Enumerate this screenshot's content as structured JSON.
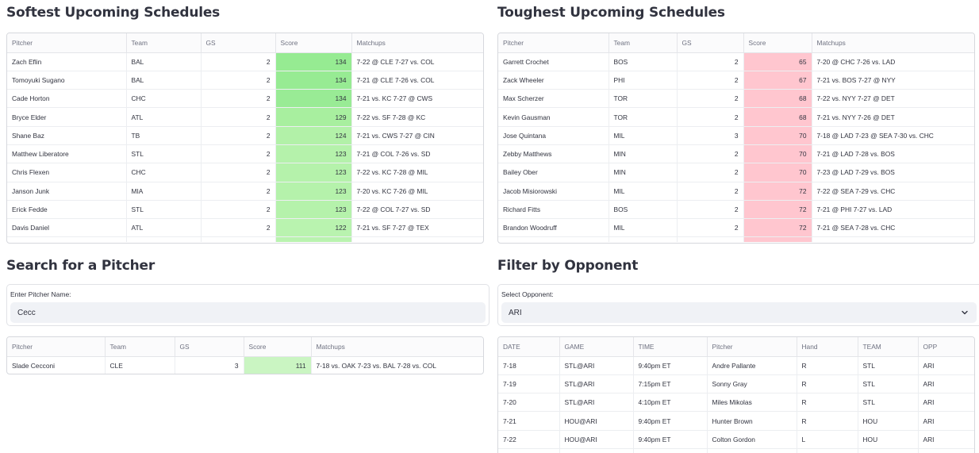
{
  "colors": {
    "soft_score": [
      "#96eb92",
      "#97eb93",
      "#99eb95",
      "#a8ef9f",
      "#b2f1a8",
      "#b5f2ab",
      "#b5f2ab",
      "#b5f2ab",
      "#b5f2ab",
      "#b9f3af"
    ],
    "tough_score": "#ffc6cf",
    "search_score": "#caf5c2"
  },
  "softest": {
    "title": "Softest Upcoming Schedules",
    "columns": [
      "Pitcher",
      "Team",
      "GS",
      "Score",
      "Matchups"
    ],
    "rows": [
      {
        "pitcher": "Zach Eflin",
        "team": "BAL",
        "gs": "2",
        "score": "134",
        "matchups": "7-22 @ CLE  7-27 vs. COL"
      },
      {
        "pitcher": "Tomoyuki Sugano",
        "team": "BAL",
        "gs": "2",
        "score": "134",
        "matchups": "7-21 @ CLE  7-26 vs. COL"
      },
      {
        "pitcher": "Cade Horton",
        "team": "CHC",
        "gs": "2",
        "score": "134",
        "matchups": "7-21 vs. KC  7-27 @ CWS"
      },
      {
        "pitcher": "Bryce Elder",
        "team": "ATL",
        "gs": "2",
        "score": "129",
        "matchups": "7-22 vs. SF  7-28 @ KC"
      },
      {
        "pitcher": "Shane Baz",
        "team": "TB",
        "gs": "2",
        "score": "124",
        "matchups": "7-21 vs. CWS  7-27 @ CIN"
      },
      {
        "pitcher": "Matthew Liberatore",
        "team": "STL",
        "gs": "2",
        "score": "123",
        "matchups": "7-21 @ COL  7-26 vs. SD"
      },
      {
        "pitcher": "Chris Flexen",
        "team": "CHC",
        "gs": "2",
        "score": "123",
        "matchups": "7-22 vs. KC  7-28 @ MIL"
      },
      {
        "pitcher": "Janson Junk",
        "team": "MIA",
        "gs": "2",
        "score": "123",
        "matchups": "7-20 vs. KC  7-26 @ MIL"
      },
      {
        "pitcher": "Erick Fedde",
        "team": "STL",
        "gs": "2",
        "score": "123",
        "matchups": "7-22 @ COL  7-27 vs. SD"
      },
      {
        "pitcher": "Davis Daniel",
        "team": "ATL",
        "gs": "2",
        "score": "122",
        "matchups": "7-21 vs. SF  7-27 @ TEX"
      }
    ]
  },
  "toughest": {
    "title": "Toughest Upcoming Schedules",
    "columns": [
      "Pitcher",
      "Team",
      "GS",
      "Score",
      "Matchups"
    ],
    "rows": [
      {
        "pitcher": "Garrett Crochet",
        "team": "BOS",
        "gs": "2",
        "score": "65",
        "matchups": "7-20 @ CHC  7-26 vs. LAD"
      },
      {
        "pitcher": "Zack Wheeler",
        "team": "PHI",
        "gs": "2",
        "score": "67",
        "matchups": "7-21 vs. BOS  7-27 @ NYY"
      },
      {
        "pitcher": "Max Scherzer",
        "team": "TOR",
        "gs": "2",
        "score": "68",
        "matchups": "7-22 vs. NYY  7-27 @ DET"
      },
      {
        "pitcher": "Kevin Gausman",
        "team": "TOR",
        "gs": "2",
        "score": "68",
        "matchups": "7-21 vs. NYY  7-26 @ DET"
      },
      {
        "pitcher": "Jose Quintana",
        "team": "MIL",
        "gs": "3",
        "score": "70",
        "matchups": "7-18 @ LAD  7-23 @ SEA  7-30 vs. CHC"
      },
      {
        "pitcher": "Zebby Matthews",
        "team": "MIN",
        "gs": "2",
        "score": "70",
        "matchups": "7-21 @ LAD  7-28 vs. BOS"
      },
      {
        "pitcher": "Bailey Ober",
        "team": "MIN",
        "gs": "2",
        "score": "70",
        "matchups": "7-23 @ LAD  7-29 vs. BOS"
      },
      {
        "pitcher": "Jacob Misiorowski",
        "team": "MIL",
        "gs": "2",
        "score": "72",
        "matchups": "7-22 @ SEA  7-29 vs. CHC"
      },
      {
        "pitcher": "Richard Fitts",
        "team": "BOS",
        "gs": "2",
        "score": "72",
        "matchups": "7-21 @ PHI  7-27 vs. LAD"
      },
      {
        "pitcher": "Brandon Woodruff",
        "team": "MIL",
        "gs": "2",
        "score": "72",
        "matchups": "7-21 @ SEA  7-28 vs. CHC"
      }
    ]
  },
  "search": {
    "title": "Search for a Pitcher",
    "input_label": "Enter Pitcher Name:",
    "input_value": "Cecc",
    "columns": [
      "Pitcher",
      "Team",
      "GS",
      "Score",
      "Matchups"
    ],
    "rows": [
      {
        "pitcher": "Slade Cecconi",
        "team": "CLE",
        "gs": "3",
        "score": "111",
        "matchups": "7-18 vs. OAK  7-23 vs. BAL  7-28 vs. COL"
      }
    ]
  },
  "filter": {
    "title": "Filter by Opponent",
    "select_label": "Select Opponent:",
    "select_value": "ARI",
    "chevron_icon": "chevron-down-icon",
    "columns": [
      "DATE",
      "GAME",
      "TIME",
      "Pitcher",
      "Hand",
      "TEAM",
      "OPP"
    ],
    "rows": [
      {
        "date": "7-18",
        "game": "STL@ARI",
        "time": "9:40pm ET",
        "pitcher": "Andre Pallante",
        "hand": "R",
        "team": "STL",
        "opp": "ARI"
      },
      {
        "date": "7-19",
        "game": "STL@ARI",
        "time": "7:15pm ET",
        "pitcher": "Sonny Gray",
        "hand": "R",
        "team": "STL",
        "opp": "ARI"
      },
      {
        "date": "7-20",
        "game": "STL@ARI",
        "time": "4:10pm ET",
        "pitcher": "Miles Mikolas",
        "hand": "R",
        "team": "STL",
        "opp": "ARI"
      },
      {
        "date": "7-21",
        "game": "HOU@ARI",
        "time": "9:40pm ET",
        "pitcher": "Hunter Brown",
        "hand": "R",
        "team": "HOU",
        "opp": "ARI"
      },
      {
        "date": "7-22",
        "game": "HOU@ARI",
        "time": "9:40pm ET",
        "pitcher": "Colton Gordon",
        "hand": "L",
        "team": "HOU",
        "opp": "ARI"
      }
    ]
  }
}
